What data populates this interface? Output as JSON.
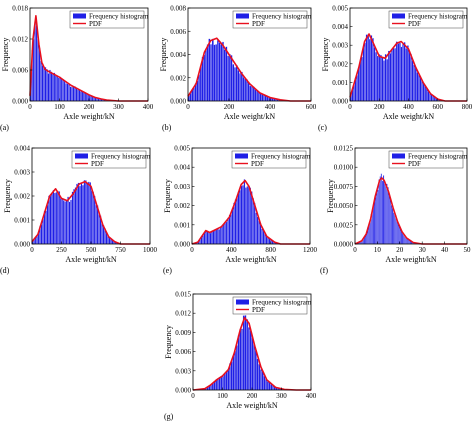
{
  "legend": {
    "histogram_label": "Frequency histogram",
    "pdf_label": "PDF"
  },
  "colors": {
    "bar": "#1f1fe6",
    "bar_stroke": "#0000cc",
    "pdf": "#e8101e",
    "axis": "#000000"
  },
  "chart_data": [
    {
      "type": "bar",
      "panel": "(a)",
      "xlabel": "Axle weight/kN",
      "ylabel": "Frequency",
      "xlim": [
        0,
        400
      ],
      "ylim": [
        0,
        0.018
      ],
      "xticks": [
        "0",
        "100",
        "200",
        "300",
        "400"
      ],
      "yticks": [
        "0.000",
        "0.006",
        "0.012",
        "0.018"
      ],
      "x": [
        0,
        10,
        20,
        30,
        40,
        50,
        60,
        80,
        100,
        120,
        140,
        160,
        180,
        200,
        220,
        240,
        260,
        280,
        300
      ],
      "pdf": [
        0.001,
        0.012,
        0.0165,
        0.011,
        0.0075,
        0.0062,
        0.0058,
        0.0052,
        0.0046,
        0.0038,
        0.003,
        0.0024,
        0.0018,
        0.0012,
        0.0007,
        0.0004,
        0.0002,
        0.0001,
        0
      ]
    },
    {
      "type": "bar",
      "panel": "(b)",
      "xlabel": "Axle weight/kN",
      "ylabel": "Frequency",
      "xlim": [
        0,
        600
      ],
      "ylim": [
        0,
        0.008
      ],
      "xticks": [
        "0",
        "200",
        "400",
        "600"
      ],
      "yticks": [
        "0.000",
        "0.002",
        "0.004",
        "0.006",
        "0.008"
      ],
      "x": [
        0,
        40,
        80,
        110,
        140,
        170,
        200,
        230,
        260,
        300,
        350,
        400,
        450,
        500
      ],
      "pdf": [
        0.0004,
        0.0015,
        0.0042,
        0.0052,
        0.0054,
        0.0048,
        0.004,
        0.0032,
        0.0024,
        0.0015,
        0.0007,
        0.0003,
        0.0001,
        0
      ]
    },
    {
      "type": "bar",
      "panel": "(c)",
      "xlabel": "Axle weight/kN",
      "ylabel": "Frequency",
      "xlim": [
        0,
        800
      ],
      "ylim": [
        0,
        0.005
      ],
      "xticks": [
        "0",
        "200",
        "400",
        "600",
        "800"
      ],
      "yticks": [
        "0.000",
        "0.001",
        "0.002",
        "0.003",
        "0.004",
        "0.005"
      ],
      "x": [
        0,
        60,
        100,
        130,
        160,
        200,
        240,
        280,
        320,
        350,
        400,
        450,
        500,
        550,
        600,
        650
      ],
      "pdf": [
        0.0002,
        0.0018,
        0.0032,
        0.0036,
        0.0031,
        0.0024,
        0.0023,
        0.0027,
        0.0031,
        0.0032,
        0.0028,
        0.0018,
        0.001,
        0.0004,
        0.0001,
        0
      ]
    },
    {
      "type": "bar",
      "panel": "(d)",
      "xlabel": "Axle weight/kN",
      "ylabel": "Frequency",
      "xlim": [
        0,
        1000
      ],
      "ylim": [
        0,
        0.004
      ],
      "xticks": [
        "0",
        "250",
        "500",
        "750",
        "1000"
      ],
      "yticks": [
        "0.000",
        "0.001",
        "0.002",
        "0.003",
        "0.004"
      ],
      "x": [
        0,
        50,
        100,
        150,
        200,
        250,
        300,
        350,
        400,
        450,
        500,
        550,
        600,
        650,
        700,
        750
      ],
      "pdf": [
        0.0001,
        0.0004,
        0.0012,
        0.002,
        0.0023,
        0.0019,
        0.0018,
        0.0021,
        0.0025,
        0.0026,
        0.0024,
        0.0016,
        0.0008,
        0.0003,
        0.0001,
        0
      ]
    },
    {
      "type": "bar",
      "panel": "(e)",
      "xlabel": "Axle weight/kN",
      "ylabel": "Frequency",
      "xlim": [
        0,
        1200
      ],
      "ylim": [
        0,
        0.005
      ],
      "xticks": [
        "0",
        "400",
        "800",
        "1200"
      ],
      "yticks": [
        "0.000",
        "0.001",
        "0.002",
        "0.003",
        "0.004",
        "0.005"
      ],
      "x": [
        0,
        60,
        100,
        140,
        180,
        220,
        300,
        380,
        440,
        500,
        540,
        580,
        640,
        700,
        760,
        840,
        900
      ],
      "pdf": [
        0,
        0.0001,
        0.0004,
        0.0007,
        0.0006,
        0.0007,
        0.0009,
        0.0014,
        0.0022,
        0.0031,
        0.0033,
        0.003,
        0.002,
        0.001,
        0.0004,
        0.0001,
        0
      ]
    },
    {
      "type": "bar",
      "panel": "(f)",
      "xlabel": "Axle weight/kN",
      "ylabel": "Frequency",
      "xlim": [
        0,
        50
      ],
      "ylim": [
        0,
        0.0125
      ],
      "xticks": [
        "0",
        "10",
        "20",
        "30",
        "40",
        "50"
      ],
      "yticks": [
        "0.0000",
        "0.0025",
        "0.0050",
        "0.0075",
        "0.0100",
        "0.0125"
      ],
      "x": [
        0,
        3,
        5,
        7,
        9,
        11,
        12,
        13,
        15,
        17,
        19,
        21,
        23,
        26,
        30
      ],
      "pdf": [
        0,
        0.0004,
        0.0013,
        0.0033,
        0.0062,
        0.0083,
        0.0086,
        0.0083,
        0.0068,
        0.0047,
        0.0029,
        0.0016,
        0.0008,
        0.0002,
        0
      ]
    },
    {
      "type": "bar",
      "panel": "(g)",
      "xlabel": "Axle weight/kN",
      "ylabel": "Frequency",
      "xlim": [
        0,
        400
      ],
      "ylim": [
        0,
        0.015
      ],
      "xticks": [
        "0",
        "100",
        "200",
        "300",
        "400"
      ],
      "yticks": [
        "0.000",
        "0.003",
        "0.006",
        "0.009",
        "0.012",
        "0.015"
      ],
      "x": [
        0,
        40,
        60,
        80,
        100,
        120,
        140,
        160,
        175,
        190,
        210,
        230,
        250,
        280,
        310,
        350
      ],
      "pdf": [
        0,
        0.0002,
        0.0008,
        0.0016,
        0.0022,
        0.0032,
        0.0058,
        0.0094,
        0.0113,
        0.0104,
        0.0068,
        0.0036,
        0.0016,
        0.0004,
        0.0001,
        0
      ]
    }
  ]
}
